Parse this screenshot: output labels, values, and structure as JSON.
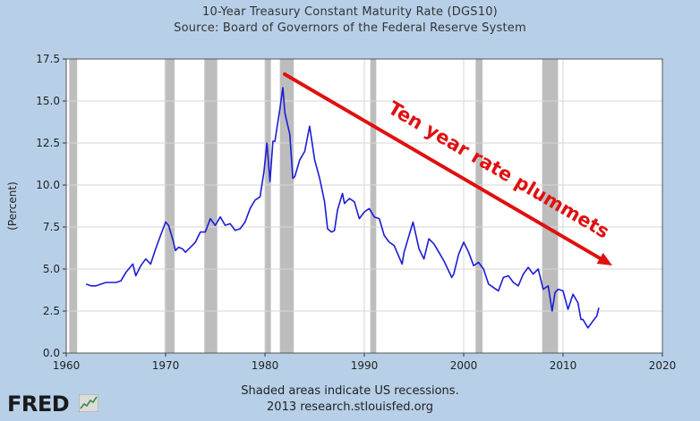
{
  "title": "10-Year Treasury Constant Maturity Rate (DGS10)",
  "subtitle": "Source: Board of Governors of the Federal Reserve System",
  "footer": {
    "note": "Shaded areas indicate US recessions.",
    "source": "2013 research.stlouisfed.org"
  },
  "logo": {
    "text": "FRED"
  },
  "colors": {
    "background": "#b7d0e8",
    "plot_bg": "#ffffff",
    "line": "#1c1cd6",
    "recession": "#bdbdbd",
    "annotation": "#e01010"
  },
  "chart_data": {
    "type": "line",
    "ylabel": "(Percent)",
    "xlabel": "",
    "xlim": [
      1960,
      2020
    ],
    "ylim": [
      0.0,
      17.5
    ],
    "x_ticks": [
      1960,
      1970,
      1980,
      1990,
      2000,
      2010,
      2020
    ],
    "y_ticks": [
      "0.0",
      "2.5",
      "5.0",
      "7.5",
      "10.0",
      "12.5",
      "15.0",
      "17.5"
    ],
    "grid": true,
    "recessions": [
      [
        1960.3,
        1961.1
      ],
      [
        1969.9,
        1970.9
      ],
      [
        1973.9,
        1975.2
      ],
      [
        1980.0,
        1980.6
      ],
      [
        1981.5,
        1982.9
      ],
      [
        1990.6,
        1991.2
      ],
      [
        2001.2,
        2001.9
      ],
      [
        2007.9,
        2009.5
      ]
    ],
    "series": [
      {
        "x": [
          1962.0,
          1962.5,
          1963.0,
          1963.5,
          1964.0,
          1965.0,
          1965.5,
          1966.0,
          1966.7,
          1967.0,
          1967.5,
          1968.0,
          1968.5,
          1969.0,
          1969.5,
          1970.0,
          1970.3,
          1970.7,
          1971.0,
          1971.3,
          1971.7,
          1972.0,
          1972.5,
          1973.0,
          1973.5,
          1974.0,
          1974.5,
          1975.0,
          1975.5,
          1976.0,
          1976.5,
          1977.0,
          1977.5,
          1978.0,
          1978.5,
          1979.0,
          1979.5,
          1979.9,
          1980.2,
          1980.5,
          1980.8,
          1981.0,
          1981.5,
          1981.8,
          1982.0,
          1982.5,
          1982.8,
          1983.0,
          1983.5,
          1984.0,
          1984.5,
          1985.0,
          1985.5,
          1986.0,
          1986.3,
          1986.7,
          1987.0,
          1987.3,
          1987.8,
          1988.0,
          1988.5,
          1989.0,
          1989.5,
          1990.0,
          1990.5,
          1991.0,
          1991.5,
          1992.0,
          1992.5,
          1993.0,
          1993.8,
          1994.0,
          1994.9,
          1995.5,
          1996.0,
          1996.5,
          1997.0,
          1997.5,
          1998.0,
          1998.8,
          1999.0,
          1999.5,
          2000.0,
          2000.5,
          2001.0,
          2001.5,
          2002.0,
          2002.5,
          2003.0,
          2003.5,
          2004.0,
          2004.5,
          2005.0,
          2005.5,
          2006.0,
          2006.5,
          2007.0,
          2007.5,
          2008.0,
          2008.5,
          2008.9,
          2009.2,
          2009.5,
          2010.0,
          2010.5,
          2011.0,
          2011.5,
          2011.8,
          2012.0,
          2012.5,
          2013.0,
          2013.4,
          2013.6
        ],
        "values": [
          4.1,
          4.0,
          4.0,
          4.1,
          4.2,
          4.2,
          4.3,
          4.8,
          5.3,
          4.6,
          5.2,
          5.6,
          5.3,
          6.2,
          7.0,
          7.8,
          7.6,
          6.8,
          6.1,
          6.3,
          6.2,
          6.0,
          6.3,
          6.6,
          7.2,
          7.2,
          8.0,
          7.6,
          8.1,
          7.6,
          7.7,
          7.3,
          7.4,
          7.8,
          8.6,
          9.1,
          9.3,
          10.8,
          12.5,
          10.2,
          12.6,
          12.6,
          14.5,
          15.8,
          14.3,
          13.0,
          10.4,
          10.5,
          11.5,
          12.0,
          13.5,
          11.5,
          10.4,
          9.0,
          7.4,
          7.2,
          7.3,
          8.5,
          9.5,
          8.9,
          9.2,
          9.0,
          8.0,
          8.4,
          8.6,
          8.1,
          8.0,
          7.0,
          6.6,
          6.4,
          5.3,
          6.0,
          7.8,
          6.2,
          5.6,
          6.8,
          6.5,
          6.0,
          5.5,
          4.5,
          4.7,
          5.9,
          6.6,
          6.0,
          5.2,
          5.4,
          5.0,
          4.1,
          3.9,
          3.7,
          4.5,
          4.6,
          4.2,
          4.0,
          4.7,
          5.1,
          4.7,
          5.0,
          3.8,
          4.0,
          2.5,
          3.6,
          3.8,
          3.7,
          2.6,
          3.5,
          3.0,
          2.0,
          2.0,
          1.5,
          1.9,
          2.2,
          2.7
        ]
      }
    ],
    "annotation": {
      "text": "Ten year rate plummets"
    }
  }
}
